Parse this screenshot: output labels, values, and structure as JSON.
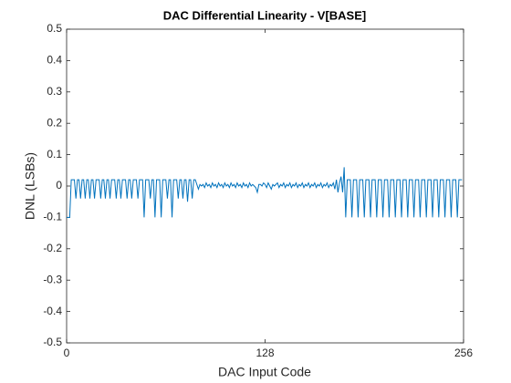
{
  "chart_data": {
    "type": "line",
    "title": "DAC Differential Linearity - V[BASE]",
    "xlabel": "DAC Input Code",
    "ylabel": "DNL (LSBs)",
    "color": "#0072bd",
    "xlim": [
      0,
      256
    ],
    "ylim": [
      -0.5,
      0.5
    ],
    "xticks": [
      0,
      128,
      256
    ],
    "yticks": [
      -0.5,
      -0.4,
      -0.3,
      -0.2,
      -0.1,
      0,
      0.1,
      0.2,
      0.3,
      0.4,
      0.5
    ],
    "x": [
      0,
      1,
      2,
      3,
      4,
      5,
      6,
      7,
      8,
      9,
      10,
      11,
      12,
      13,
      14,
      15,
      16,
      17,
      18,
      19,
      20,
      21,
      22,
      23,
      24,
      25,
      26,
      27,
      28,
      29,
      30,
      31,
      32,
      33,
      34,
      35,
      36,
      37,
      38,
      39,
      40,
      41,
      42,
      43,
      44,
      45,
      46,
      47,
      48,
      49,
      50,
      51,
      52,
      53,
      54,
      55,
      56,
      57,
      58,
      59,
      60,
      61,
      62,
      63,
      64,
      65,
      66,
      67,
      68,
      69,
      70,
      71,
      72,
      73,
      74,
      75,
      76,
      77,
      78,
      79,
      80,
      81,
      82,
      83,
      84,
      85,
      86,
      87,
      88,
      89,
      90,
      91,
      92,
      93,
      94,
      95,
      96,
      97,
      98,
      99,
      100,
      101,
      102,
      103,
      104,
      105,
      106,
      107,
      108,
      109,
      110,
      111,
      112,
      113,
      114,
      115,
      116,
      117,
      118,
      119,
      120,
      121,
      122,
      123,
      124,
      125,
      126,
      127,
      128,
      129,
      130,
      131,
      132,
      133,
      134,
      135,
      136,
      137,
      138,
      139,
      140,
      141,
      142,
      143,
      144,
      145,
      146,
      147,
      148,
      149,
      150,
      151,
      152,
      153,
      154,
      155,
      156,
      157,
      158,
      159,
      160,
      161,
      162,
      163,
      164,
      165,
      166,
      167,
      168,
      169,
      170,
      171,
      172,
      173,
      174,
      175,
      176,
      177,
      178,
      179,
      180,
      181,
      182,
      183,
      184,
      185,
      186,
      187,
      188,
      189,
      190,
      191,
      192,
      193,
      194,
      195,
      196,
      197,
      198,
      199,
      200,
      201,
      202,
      203,
      204,
      205,
      206,
      207,
      208,
      209,
      210,
      211,
      212,
      213,
      214,
      215,
      216,
      217,
      218,
      219,
      220,
      221,
      222,
      223,
      224,
      225,
      226,
      227,
      228,
      229,
      230,
      231,
      232,
      233,
      234,
      235,
      236,
      237,
      238,
      239,
      240,
      241,
      242,
      243,
      244,
      245,
      246,
      247,
      248,
      249,
      250,
      251,
      252,
      253,
      254,
      255
    ],
    "values": [
      -0.1,
      -0.1,
      -0.1,
      0.02,
      0.02,
      0.02,
      -0.04,
      0.02,
      0.02,
      -0.04,
      0.02,
      0.02,
      -0.04,
      0.02,
      0.02,
      -0.04,
      0.02,
      0.02,
      -0.04,
      0.02,
      0.02,
      0.02,
      -0.04,
      0.02,
      0.02,
      -0.04,
      0.02,
      0.02,
      -0.04,
      0.02,
      0.02,
      0.02,
      -0.04,
      0.02,
      0.02,
      -0.04,
      0.02,
      0.02,
      0.02,
      -0.04,
      0.02,
      0.02,
      -0.04,
      0.02,
      0.02,
      0.02,
      -0.04,
      0.02,
      0.02,
      0.02,
      -0.1,
      0.02,
      0.02,
      0.02,
      -0.04,
      0.02,
      0.02,
      -0.1,
      0.02,
      0.02,
      0.02,
      -0.1,
      0.02,
      0.02,
      0.02,
      -0.04,
      0.02,
      0.02,
      -0.1,
      0.02,
      0.02,
      0.02,
      -0.04,
      0.02,
      0.02,
      -0.04,
      0.02,
      0.02,
      -0.05,
      0.02,
      0.02,
      -0.04,
      0.02,
      0.02,
      0.005,
      -0.01,
      0.005,
      0,
      0.005,
      -0.005,
      0.01,
      0,
      0.005,
      -0.005,
      0.01,
      0,
      0.005,
      -0.005,
      0.01,
      0,
      0.005,
      -0.005,
      0.01,
      0,
      0.005,
      -0.005,
      0.01,
      0,
      0.005,
      -0.005,
      0.01,
      0,
      0.005,
      -0.005,
      0.01,
      0,
      0.005,
      -0.005,
      0.01,
      0,
      0.005,
      0,
      -0.005,
      -0.02,
      0.005,
      0.005,
      0,
      0.01,
      0.005,
      -0.005,
      0.01,
      0,
      -0.01,
      0.005,
      0,
      0.005,
      0.01,
      -0.005,
      0.005,
      0,
      0.01,
      -0.005,
      0.005,
      0,
      0.01,
      -0.005,
      0.005,
      0,
      0.01,
      -0.005,
      0.005,
      0,
      0.01,
      -0.005,
      0.005,
      0,
      0.01,
      -0.005,
      0.005,
      0,
      0.01,
      -0.005,
      0.005,
      0,
      0.01,
      -0.005,
      0.005,
      0,
      0.01,
      -0.005,
      0.005,
      0,
      0.01,
      -0.01,
      0.02,
      -0.02,
      0.01,
      0.03,
      -0.02,
      0.06,
      -0.1,
      0.02,
      0.02,
      0.02,
      -0.1,
      0.02,
      0.02,
      0.02,
      -0.1,
      0.02,
      0.02,
      0.02,
      -0.1,
      0.02,
      0.02,
      0.02,
      -0.1,
      0.02,
      0.02,
      0.02,
      -0.1,
      0.02,
      0.02,
      0.02,
      -0.1,
      0.02,
      0.02,
      0.02,
      -0.1,
      0.02,
      0.02,
      0.02,
      -0.1,
      0.02,
      0.02,
      0.02,
      -0.1,
      0.02,
      0.02,
      0.02,
      -0.1,
      0.02,
      0.02,
      0.02,
      -0.1,
      0.02,
      0.02,
      0.02,
      -0.1,
      0.02,
      0.02,
      0.02,
      -0.1,
      0.02,
      0.02,
      0.02,
      -0.1,
      0.02,
      0.02,
      0.02,
      -0.1,
      0.02,
      0.02,
      0.02,
      -0.1,
      0.02,
      0.02,
      0.02,
      -0.1,
      0.02,
      0.02,
      0.02,
      -0.1,
      0.02,
      0.02,
      0.02
    ]
  }
}
